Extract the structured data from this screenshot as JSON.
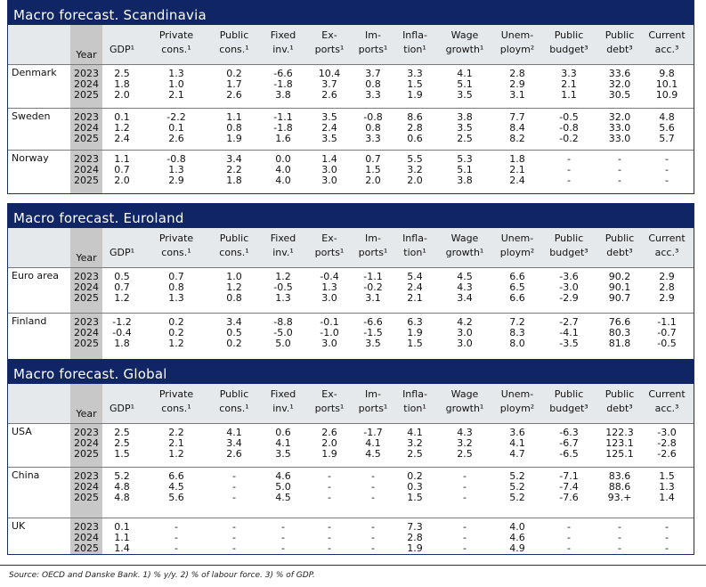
{
  "columns": [
    {
      "lines": [
        "",
        "GDP¹"
      ]
    },
    {
      "lines": [
        "Private",
        "cons.¹"
      ]
    },
    {
      "lines": [
        "Public",
        "cons.¹"
      ]
    },
    {
      "lines": [
        "Fixed",
        "inv.¹"
      ]
    },
    {
      "lines": [
        "Ex-",
        "ports¹"
      ]
    },
    {
      "lines": [
        "Im-",
        "ports¹"
      ]
    },
    {
      "lines": [
        "Infla-",
        "tion¹"
      ]
    },
    {
      "lines": [
        "Wage",
        "growth¹"
      ]
    },
    {
      "lines": [
        "Unem-",
        "ploym²"
      ]
    },
    {
      "lines": [
        "Public",
        "budget³"
      ]
    },
    {
      "lines": [
        "Public",
        "debt³"
      ]
    },
    {
      "lines": [
        "Current",
        "acc.³"
      ]
    }
  ],
  "year_header": "Year",
  "sections": [
    {
      "title": "Macro forecast. Scandinavia",
      "groups": [
        {
          "country": "Denmark",
          "years": [
            "2023",
            "2024",
            "2025"
          ],
          "rows": [
            [
              "2.5",
              "1.3",
              "0.2",
              "-6.6",
              "10.4",
              "3.7",
              "3.3",
              "4.1",
              "2.8",
              "3.3",
              "33.6",
              "9.8"
            ],
            [
              "1.8",
              "1.0",
              "1.7",
              "-1.8",
              "3.7",
              "0.8",
              "1.5",
              "5.1",
              "2.9",
              "2.1",
              "32.0",
              "10.1"
            ],
            [
              "2.0",
              "2.1",
              "2.6",
              "3.8",
              "2.6",
              "3.3",
              "1.9",
              "3.5",
              "3.1",
              "1.1",
              "30.5",
              "10.9"
            ]
          ]
        },
        {
          "country": "Sweden",
          "years": [
            "2023",
            "2024",
            "2025"
          ],
          "rows": [
            [
              "0.1",
              "-2.2",
              "1.1",
              "-1.1",
              "3.5",
              "-0.8",
              "8.6",
              "3.8",
              "7.7",
              "-0.5",
              "32.0",
              "4.8"
            ],
            [
              "1.2",
              "0.1",
              "0.8",
              "-1.8",
              "2.4",
              "0.8",
              "2.8",
              "3.5",
              "8.4",
              "-0.8",
              "33.0",
              "5.6"
            ],
            [
              "2.4",
              "2.6",
              "1.9",
              "1.6",
              "3.5",
              "3.3",
              "0.6",
              "2.5",
              "8.2",
              "-0.2",
              "33.0",
              "5.7"
            ]
          ]
        },
        {
          "country": "Norway",
          "years": [
            "2023",
            "2024",
            "2025"
          ],
          "rows": [
            [
              "1.1",
              "-0.8",
              "3.4",
              "0.0",
              "1.4",
              "0.7",
              "5.5",
              "5.3",
              "1.8",
              "-",
              "-",
              "-"
            ],
            [
              "0.7",
              "1.3",
              "2.2",
              "4.0",
              "3.0",
              "1.5",
              "3.2",
              "5.1",
              "2.1",
              "-",
              "-",
              "-"
            ],
            [
              "2.0",
              "2.9",
              "1.8",
              "4.0",
              "3.0",
              "2.0",
              "2.0",
              "3.8",
              "2.4",
              "-",
              "-",
              "-"
            ]
          ]
        }
      ]
    },
    {
      "title": "Macro forecast. Euroland",
      "groups": [
        {
          "country": "Euro area",
          "years": [
            "2023",
            "2024",
            "2025"
          ],
          "rows": [
            [
              "0.5",
              "0.7",
              "1.0",
              "1.2",
              "-0.4",
              "-1.1",
              "5.4",
              "4.5",
              "6.6",
              "-3.6",
              "90.2",
              "2.9"
            ],
            [
              "0.7",
              "0.8",
              "1.2",
              "-0.5",
              "1.3",
              "-0.2",
              "2.4",
              "4.3",
              "6.5",
              "-3.0",
              "90.1",
              "2.8"
            ],
            [
              "1.2",
              "1.3",
              "0.8",
              "1.3",
              "3.0",
              "3.1",
              "2.1",
              "3.4",
              "6.6",
              "-2.9",
              "90.7",
              "2.9"
            ]
          ]
        },
        {
          "country": "Finland",
          "years": [
            "2023",
            "2024",
            "2025"
          ],
          "rows": [
            [
              "-1.2",
              "0.2",
              "3.4",
              "-8.8",
              "-0.1",
              "-6.6",
              "6.3",
              "4.2",
              "7.2",
              "-2.7",
              "76.6",
              "-1.1"
            ],
            [
              "-0.4",
              "0.2",
              "0.5",
              "-5.0",
              "-1.0",
              "-1.5",
              "1.9",
              "3.0",
              "8.3",
              "-4.1",
              "80.3",
              "-0.7"
            ],
            [
              "1.8",
              "1.2",
              "0.2",
              "5.0",
              "3.0",
              "3.5",
              "1.5",
              "3.0",
              "8.0",
              "-3.5",
              "81.8",
              "-0.5"
            ]
          ]
        }
      ]
    },
    {
      "title": "Macro forecast. Global",
      "groups": [
        {
          "country": "USA",
          "years": [
            "2023",
            "2024",
            "2025"
          ],
          "rows": [
            [
              "2.5",
              "2.2",
              "4.1",
              "0.6",
              "2.6",
              "-1.7",
              "4.1",
              "4.3",
              "3.6",
              "-6.3",
              "122.3",
              "-3.0"
            ],
            [
              "2.5",
              "2.1",
              "3.4",
              "4.1",
              "2.0",
              "4.1",
              "3.2",
              "3.2",
              "4.1",
              "-6.7",
              "123.1",
              "-2.8"
            ],
            [
              "1.5",
              "1.2",
              "2.6",
              "3.5",
              "1.9",
              "4.5",
              "2.5",
              "2.5",
              "4.7",
              "-6.5",
              "125.1",
              "-2.6"
            ]
          ]
        },
        {
          "country": "China",
          "years": [
            "2023",
            "2024",
            "2025"
          ],
          "rows": [
            [
              "5.2",
              "6.6",
              "-",
              "4.6",
              "-",
              "-",
              "0.2",
              "-",
              "5.2",
              "-7.1",
              "83.6",
              "1.5"
            ],
            [
              "4.8",
              "4.5",
              "-",
              "5.0",
              "-",
              "-",
              "0.3",
              "-",
              "5.2",
              "-7.4",
              "88.6",
              "1.3"
            ],
            [
              "4.8",
              "5.6",
              "-",
              "4.5",
              "-",
              "-",
              "1.5",
              "-",
              "5.2",
              "-7.6",
              "93.+",
              "1.4"
            ]
          ]
        },
        {
          "country": "UK",
          "years": [
            "2023",
            "2024",
            "2025"
          ],
          "rows": [
            [
              "0.1",
              "-",
              "-",
              "-",
              "-",
              "-",
              "7.3",
              "-",
              "4.0",
              "-",
              "-",
              "-"
            ],
            [
              "1.1",
              "-",
              "-",
              "-",
              "-",
              "-",
              "2.8",
              "-",
              "4.6",
              "-",
              "-",
              "-"
            ],
            [
              "1.4",
              "-",
              "-",
              "-",
              "-",
              "-",
              "1.9",
              "-",
              "4.9",
              "-",
              "-",
              "-"
            ]
          ]
        }
      ]
    }
  ],
  "footer": "Source: OECD and Danske Bank. 1) % y/y. 2) % of labour force. 3) % of GDP."
}
